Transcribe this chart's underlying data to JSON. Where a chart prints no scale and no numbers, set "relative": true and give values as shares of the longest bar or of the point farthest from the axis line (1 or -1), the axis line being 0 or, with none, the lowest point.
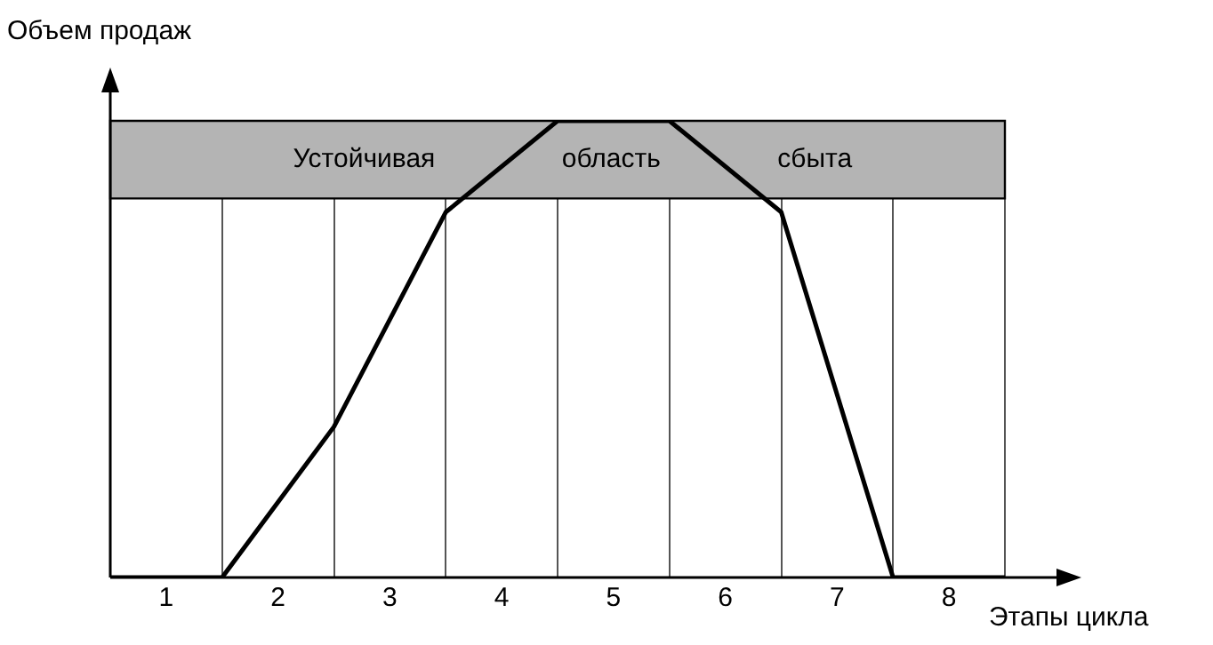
{
  "chart_data": {
    "type": "line",
    "relative": true,
    "xlabel": "Этапы цикла",
    "ylabel": "Объем продаж",
    "x": [
      0.5,
      1.5,
      2.5,
      3.5,
      4.5,
      5.5,
      6.5,
      7.5,
      8.5
    ],
    "series": [
      {
        "color": "#000000",
        "values": [
          0,
          0,
          0.33,
          0.8,
          1,
          1,
          0.8,
          0,
          0
        ]
      }
    ],
    "xlim": [
      0.5,
      8.5
    ],
    "xticks": [
      {
        "value": 0.5,
        "label": null
      },
      1,
      {
        "value": 1.5,
        "label": null
      },
      2,
      {
        "value": 2.5,
        "label": null
      },
      3,
      {
        "value": 3.5,
        "label": null
      },
      4,
      {
        "value": 4.5,
        "label": null
      },
      5,
      {
        "value": 5.5,
        "label": null
      },
      6,
      {
        "value": 6.5,
        "label": null
      },
      7,
      {
        "value": 7.5,
        "label": null
      },
      8,
      {
        "value": 8.5,
        "label": null
      }
    ],
    "bands": [
      {
        "axis": "y",
        "from": 0.83,
        "to": 1,
        "label": "Устойчивая область сбыта",
        "color": "#b4b4b4"
      }
    ],
    "grid": "x",
    "marker": "none",
    "line_style": "solid",
    "legend": false
  }
}
